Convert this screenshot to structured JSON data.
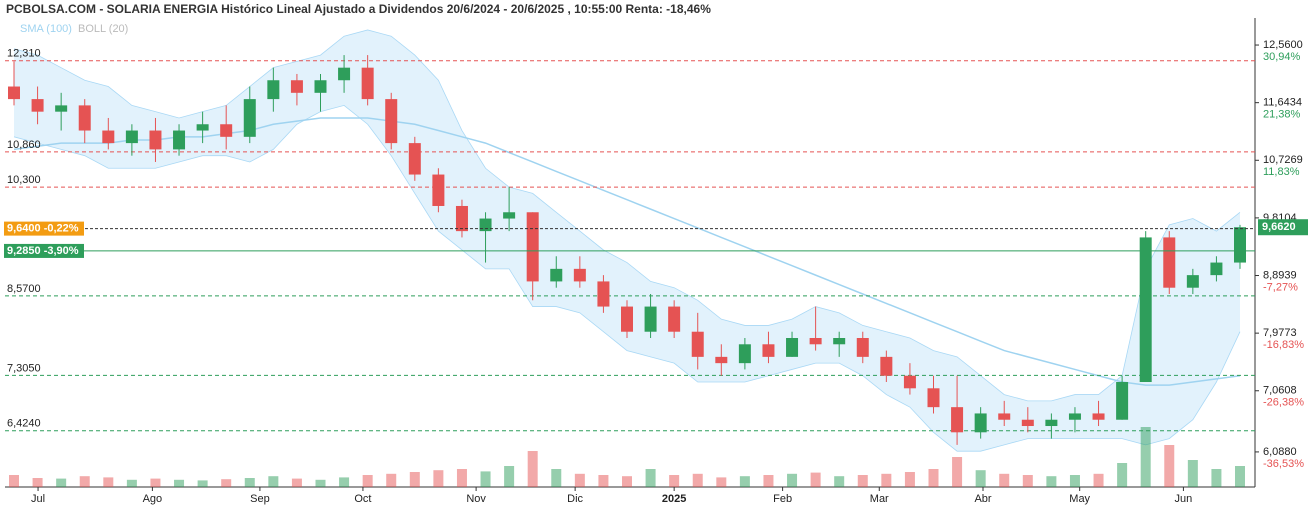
{
  "chart_data": {
    "type": "candlestick",
    "title": "PCBOLSA.COM - SOLARIA ENERGIA Histórico Lineal Ajustado a Dividendos 20/6/2024 - 20/6/2025 , 10:55:00 Renta: -18,46%",
    "legend": [
      "SMA (100)",
      "BOLL (20)"
    ],
    "ylim": [
      5.53,
      12.99
    ],
    "yticks": [
      {
        "value": 12.56,
        "label": "12,5600"
      },
      {
        "value": 11.6434,
        "label": "11,6434"
      },
      {
        "value": 10.7269,
        "label": "10,7269"
      },
      {
        "value": 9.8104,
        "label": "9,8104"
      },
      {
        "value": 8.8939,
        "label": "8,8939"
      },
      {
        "value": 7.9773,
        "label": "7,9773"
      },
      {
        "value": 7.0608,
        "label": "7,0608"
      },
      {
        "value": 6.088,
        "label": "6,0880"
      }
    ],
    "ytick_pct": [
      {
        "value": 12.56,
        "label": "30,94%",
        "color": "#2e9e5b"
      },
      {
        "value": 11.6434,
        "label": "21,38%",
        "color": "#2e9e5b"
      },
      {
        "value": 10.7269,
        "label": "11,83%",
        "color": "#2e9e5b"
      },
      {
        "value": 8.8939,
        "label": "-7,27%",
        "color": "#e55353"
      },
      {
        "value": 7.9773,
        "label": "-16,83%",
        "color": "#e55353"
      },
      {
        "value": 7.0608,
        "label": "-26,38%",
        "color": "#e55353"
      },
      {
        "value": 6.088,
        "label": "-36,53%",
        "color": "#e55353"
      }
    ],
    "xticks": [
      {
        "value": 1.02,
        "label": "Jul"
      },
      {
        "value": 5.87,
        "label": "Ago"
      },
      {
        "value": 10.43,
        "label": "Sep"
      },
      {
        "value": 14.8,
        "label": "Oct"
      },
      {
        "value": 19.6,
        "label": "Nov"
      },
      {
        "value": 23.8,
        "label": "Dic"
      },
      {
        "value": 28.0,
        "label": "2025"
      },
      {
        "value": 32.6,
        "label": "Feb"
      },
      {
        "value": 36.7,
        "label": "Mar"
      },
      {
        "value": 41.1,
        "label": "Abr"
      },
      {
        "value": 45.2,
        "label": "May"
      },
      {
        "value": 49.6,
        "label": "Jun"
      }
    ],
    "levels": [
      {
        "value": 12.31,
        "label": "12,310",
        "color": "#e55353"
      },
      {
        "value": 10.86,
        "label": "10,860",
        "color": "#e55353"
      },
      {
        "value": 10.3,
        "label": "10,300",
        "color": "#e55353"
      },
      {
        "value": 8.57,
        "label": "8,5700",
        "color": "#2e9e5b"
      },
      {
        "value": 7.305,
        "label": "7,3050",
        "color": "#2e9e5b"
      },
      {
        "value": 6.424,
        "label": "6,4240",
        "color": "#2e9e5b"
      }
    ],
    "tags": [
      {
        "value": 9.64,
        "label": "9,6400 -0,22%",
        "color": "#f39c12"
      },
      {
        "value": 9.285,
        "label": "9,2850 -3,90%",
        "color": "#2e9e5b"
      }
    ],
    "last": {
      "value": 9.662,
      "label": "9,6620",
      "color": "#2e9e5b"
    },
    "up_color": "#2e9e5b",
    "down_color": "#e55353",
    "sma_color": "#9fd3f0",
    "band_color": "#cfe9fa",
    "open": [
      11.9,
      11.7,
      11.5,
      11.6,
      11.2,
      11.0,
      11.2,
      10.9,
      11.2,
      11.3,
      11.1,
      11.7,
      12.0,
      11.8,
      12.0,
      12.2,
      11.7,
      11.0,
      10.5,
      10.0,
      9.6,
      9.8,
      9.9,
      8.8,
      9.0,
      8.8,
      8.4,
      8.0,
      8.4,
      8.0,
      7.6,
      7.5,
      7.8,
      7.6,
      7.9,
      7.8,
      7.9,
      7.6,
      7.3,
      7.1,
      6.8,
      6.4,
      6.7,
      6.6,
      6.5,
      6.6,
      6.7,
      6.6,
      7.2,
      9.5,
      8.7,
      8.9,
      9.1
    ],
    "high": [
      12.3,
      11.9,
      11.8,
      11.7,
      11.4,
      11.3,
      11.4,
      11.3,
      11.5,
      11.6,
      11.9,
      12.2,
      12.1,
      12.1,
      12.4,
      12.4,
      11.8,
      11.1,
      10.6,
      10.1,
      9.9,
      10.3,
      9.9,
      9.2,
      9.2,
      8.9,
      8.5,
      8.6,
      8.5,
      8.3,
      7.8,
      7.9,
      8.0,
      8.0,
      8.4,
      8.0,
      8.0,
      7.7,
      7.5,
      7.3,
      7.3,
      6.8,
      6.9,
      6.8,
      6.7,
      6.8,
      6.9,
      7.3,
      9.6,
      9.6,
      9.0,
      9.2,
      9.7
    ],
    "low": [
      11.6,
      11.3,
      11.2,
      11.0,
      10.9,
      10.8,
      10.7,
      10.8,
      11.0,
      10.9,
      11.0,
      11.5,
      11.6,
      11.5,
      11.8,
      11.6,
      10.9,
      10.4,
      9.9,
      9.5,
      9.1,
      9.6,
      8.5,
      8.7,
      8.7,
      8.3,
      7.9,
      7.9,
      7.9,
      7.4,
      7.3,
      7.4,
      7.5,
      7.6,
      7.7,
      7.6,
      7.5,
      7.2,
      7.0,
      6.7,
      6.2,
      6.3,
      6.5,
      6.4,
      6.3,
      6.4,
      6.5,
      6.6,
      7.2,
      8.6,
      8.6,
      8.8,
      9.0
    ],
    "close": [
      11.7,
      11.5,
      11.6,
      11.2,
      11.0,
      11.2,
      10.9,
      11.2,
      11.3,
      11.1,
      11.7,
      12.0,
      11.8,
      12.0,
      12.2,
      11.7,
      11.0,
      10.5,
      10.0,
      9.6,
      9.8,
      9.9,
      8.8,
      9.0,
      8.8,
      8.4,
      8.0,
      8.4,
      8.0,
      7.6,
      7.5,
      7.8,
      7.6,
      7.9,
      7.8,
      7.9,
      7.6,
      7.3,
      7.1,
      6.8,
      6.4,
      6.7,
      6.6,
      6.5,
      6.6,
      6.7,
      6.6,
      7.2,
      9.5,
      8.7,
      8.9,
      9.1,
      9.662
    ],
    "volume": [
      20,
      15,
      14,
      18,
      16,
      12,
      14,
      12,
      11,
      13,
      15,
      18,
      14,
      12,
      16,
      20,
      22,
      25,
      28,
      30,
      26,
      35,
      60,
      30,
      22,
      20,
      18,
      30,
      20,
      22,
      16,
      18,
      20,
      22,
      24,
      18,
      20,
      22,
      25,
      30,
      50,
      28,
      22,
      20,
      18,
      20,
      22,
      40,
      100,
      70,
      45,
      30,
      35
    ],
    "sma": [
      10.9,
      10.95,
      11.0,
      11.0,
      11.0,
      11.05,
      11.05,
      11.1,
      11.1,
      11.15,
      11.2,
      11.3,
      11.35,
      11.4,
      11.4,
      11.4,
      11.35,
      11.3,
      11.2,
      11.1,
      11.0,
      10.85,
      10.7,
      10.55,
      10.4,
      10.25,
      10.1,
      9.95,
      9.8,
      9.65,
      9.5,
      9.35,
      9.2,
      9.05,
      8.9,
      8.75,
      8.6,
      8.45,
      8.3,
      8.15,
      8.0,
      7.85,
      7.7,
      7.6,
      7.5,
      7.4,
      7.3,
      7.2,
      7.15,
      7.15,
      7.2,
      7.25,
      7.3
    ],
    "boll_upper": [
      12.5,
      12.4,
      12.2,
      12.0,
      11.9,
      11.6,
      11.5,
      11.4,
      11.5,
      11.6,
      11.9,
      12.2,
      12.3,
      12.4,
      12.7,
      12.8,
      12.7,
      12.4,
      12.0,
      11.2,
      10.6,
      10.3,
      10.2,
      9.9,
      9.6,
      9.3,
      9.1,
      8.8,
      8.7,
      8.5,
      8.2,
      8.1,
      8.1,
      8.2,
      8.4,
      8.3,
      8.1,
      8.0,
      7.9,
      7.7,
      7.6,
      7.3,
      7.0,
      6.9,
      6.9,
      7.0,
      7.0,
      7.3,
      9.0,
      9.7,
      9.8,
      9.6,
      9.9
    ],
    "boll_lower": [
      11.1,
      11.0,
      10.9,
      10.8,
      10.6,
      10.6,
      10.6,
      10.7,
      10.8,
      10.8,
      10.7,
      10.9,
      11.3,
      11.5,
      11.6,
      11.3,
      10.8,
      10.2,
      9.6,
      9.3,
      9.0,
      9.0,
      8.4,
      8.4,
      8.3,
      8.0,
      7.7,
      7.6,
      7.5,
      7.2,
      7.2,
      7.2,
      7.3,
      7.4,
      7.5,
      7.5,
      7.3,
      7.0,
      6.8,
      6.4,
      6.1,
      6.1,
      6.2,
      6.3,
      6.3,
      6.3,
      6.3,
      6.3,
      6.2,
      6.3,
      6.6,
      7.2,
      8.0
    ]
  }
}
